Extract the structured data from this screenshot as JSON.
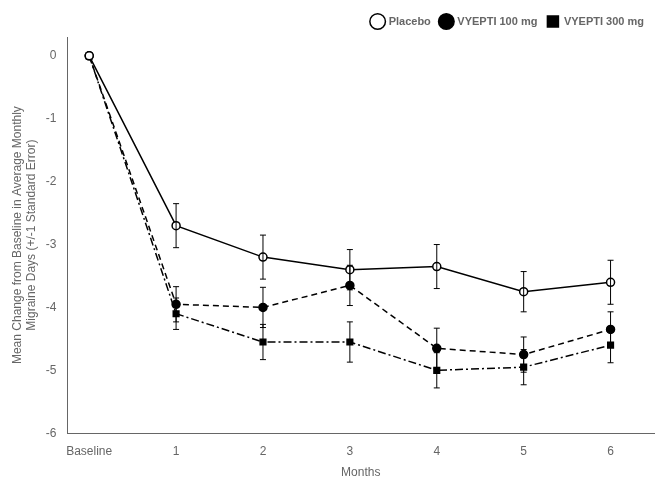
{
  "chart_data": {
    "type": "line",
    "x": [
      0,
      1,
      2,
      3,
      4,
      5,
      6
    ],
    "series": [
      {
        "name": "Placebo",
        "color": "#000000",
        "marker": "open_circle",
        "line_style": "solid",
        "values": [
          0,
          -2.7,
          -3.2,
          -3.4,
          -3.35,
          -3.75,
          -3.6
        ],
        "errors": [
          0,
          0.35,
          0.35,
          0.32,
          0.35,
          0.32,
          0.35
        ]
      },
      {
        "name": "VYEPTI 100 mg",
        "color": "#000000",
        "marker": "circle",
        "line_style": "dashed",
        "values": [
          0,
          -3.95,
          -4.0,
          -3.65,
          -4.65,
          -4.75,
          -4.35
        ],
        "errors": [
          0,
          0.28,
          0.32,
          0.32,
          0.32,
          0.28,
          0.28
        ]
      },
      {
        "name": "VYEPTI 300 mg",
        "color": "#000000",
        "marker": "square",
        "line_style": "dashdot",
        "values": [
          0,
          -4.1,
          -4.55,
          -4.55,
          -5.0,
          -4.95,
          -4.6
        ],
        "errors": [
          0,
          0.25,
          0.28,
          0.32,
          0.28,
          0.28,
          0.28
        ]
      }
    ],
    "xlabel": "Months",
    "ylabel": "Mean Change from Baseline in Average Monthly\nMigraine Days (+/-1 Standard Error)",
    "xlim": [
      -0.25,
      6.5
    ],
    "xticks": [
      {
        "value": 0,
        "label": "Baseline"
      },
      1,
      2,
      3,
      4,
      5,
      6
    ],
    "ylim": [
      -6,
      0.3
    ],
    "yticks": [
      0,
      -1,
      -2,
      -3,
      -4,
      -5,
      -6
    ],
    "grid": false,
    "legend": "upper right"
  }
}
